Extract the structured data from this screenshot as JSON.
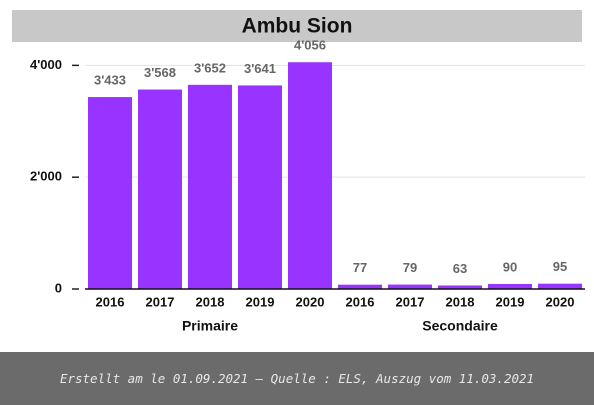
{
  "chart_data": {
    "type": "bar",
    "title": "Ambu Sion",
    "color": "#9933ff",
    "groups": [
      {
        "name": "Primaire",
        "categories": [
          "2016",
          "2017",
          "2018",
          "2019",
          "2020"
        ],
        "values": [
          3433,
          3568,
          3652,
          3641,
          4056
        ],
        "value_labels": [
          "3'433",
          "3'568",
          "3'652",
          "3'641",
          "4'056"
        ]
      },
      {
        "name": "Secondaire",
        "categories": [
          "2016",
          "2017",
          "2018",
          "2019",
          "2020"
        ],
        "values": [
          77,
          79,
          63,
          90,
          95
        ]
      }
    ],
    "ylim": [
      0,
      4400
    ],
    "yticks": [
      0,
      {
        "value": 2000,
        "label": "2'000"
      },
      {
        "value": 4000,
        "label": "4'000"
      }
    ],
    "grid": true
  },
  "caption": "Erstellt am le 01.09.2021 – Quelle : ELS, Auszug vom 11.03.2021"
}
